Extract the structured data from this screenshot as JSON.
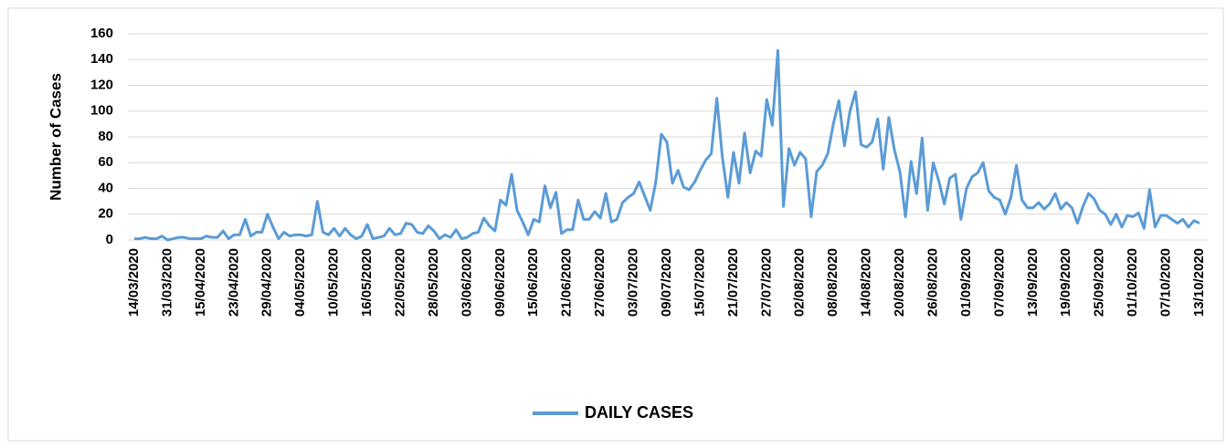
{
  "chart_data": {
    "type": "line",
    "y_label": "Number of Cases",
    "categories": [
      "14/03/2020",
      null,
      null,
      null,
      null,
      null,
      "31/03/2020",
      null,
      null,
      null,
      null,
      null,
      "15/04/2020",
      null,
      null,
      null,
      null,
      null,
      "23/04/2020",
      null,
      null,
      null,
      null,
      null,
      "29/04/2020",
      null,
      null,
      null,
      null,
      null,
      "04/05/2020",
      null,
      null,
      null,
      null,
      null,
      "10/05/2020",
      null,
      null,
      null,
      null,
      null,
      "16/05/2020",
      null,
      null,
      null,
      null,
      null,
      "22/05/2020",
      null,
      null,
      null,
      null,
      null,
      "28/05/2020",
      null,
      null,
      null,
      null,
      null,
      "03/06/2020",
      null,
      null,
      null,
      null,
      null,
      "09/06/2020",
      null,
      null,
      null,
      null,
      null,
      "15/06/2020",
      null,
      null,
      null,
      null,
      null,
      "21/06/2020",
      null,
      null,
      null,
      null,
      null,
      "27/06/2020",
      null,
      null,
      null,
      null,
      null,
      "03/07/2020",
      null,
      null,
      null,
      null,
      null,
      "09/07/2020",
      null,
      null,
      null,
      null,
      null,
      "15/07/2020",
      null,
      null,
      null,
      null,
      null,
      "21/07/2020",
      null,
      null,
      null,
      null,
      null,
      "27/07/2020",
      null,
      null,
      null,
      null,
      null,
      "02/08/2020",
      null,
      null,
      null,
      null,
      null,
      "08/08/2020",
      null,
      null,
      null,
      null,
      null,
      "14/08/2020",
      null,
      null,
      null,
      null,
      null,
      "20/08/2020",
      null,
      null,
      null,
      null,
      null,
      "26/08/2020",
      null,
      null,
      null,
      null,
      null,
      "01/09/2020",
      null,
      null,
      null,
      null,
      null,
      "07/09/2020",
      null,
      null,
      null,
      null,
      null,
      "13/09/2020",
      null,
      null,
      null,
      null,
      null,
      "19/09/2020",
      null,
      null,
      null,
      null,
      null,
      "25/09/2020",
      null,
      null,
      null,
      null,
      null,
      "01/10/2020",
      null,
      null,
      null,
      null,
      null,
      "07/10/2020",
      null,
      null,
      null,
      null,
      null,
      "13/10/2020"
    ],
    "series": [
      {
        "name": "DAILY CASES",
        "color": "#5b9bd5",
        "values": [
          1,
          1,
          2,
          1,
          1,
          3,
          0,
          1,
          2,
          2,
          1,
          1,
          1,
          3,
          2,
          2,
          7,
          1,
          4,
          4,
          16,
          3,
          6,
          6,
          20,
          10,
          1,
          6,
          3,
          4,
          4,
          3,
          4,
          30,
          6,
          4,
          9,
          3,
          9,
          4,
          1,
          3,
          12,
          1,
          2,
          3,
          9,
          4,
          5,
          13,
          12,
          6,
          5,
          11,
          7,
          1,
          4,
          2,
          8,
          1,
          2,
          5,
          6,
          17,
          11,
          7,
          31,
          27,
          51,
          23,
          14,
          4,
          16,
          14,
          42,
          25,
          37,
          5,
          8,
          8,
          31,
          16,
          16,
          22,
          17,
          36,
          14,
          16,
          29,
          33,
          36,
          45,
          34,
          23,
          45,
          82,
          76,
          44,
          54,
          41,
          39,
          45,
          54,
          62,
          67,
          110,
          64,
          33,
          68,
          44,
          83,
          52,
          69,
          65,
          109,
          89,
          147,
          26,
          71,
          58,
          68,
          63,
          18,
          53,
          58,
          67,
          90,
          108,
          73,
          100,
          115,
          74,
          72,
          76,
          94,
          55,
          95,
          70,
          53,
          18,
          61,
          36,
          79,
          23,
          60,
          46,
          28,
          48,
          51,
          16,
          40,
          49,
          52,
          60,
          38,
          33,
          31,
          20,
          33,
          58,
          31,
          25,
          25,
          29,
          24,
          28,
          36,
          24,
          29,
          25,
          13,
          26,
          36,
          32,
          23,
          20,
          12,
          20,
          10,
          19,
          18,
          21,
          9,
          39,
          10,
          19,
          19,
          16,
          13,
          16,
          10,
          15,
          13
        ]
      }
    ],
    "ylim": [
      0,
      160
    ],
    "yticks": [
      0,
      20,
      40,
      60,
      80,
      100,
      120,
      140,
      160
    ],
    "grid": true,
    "legend": "bottom"
  }
}
